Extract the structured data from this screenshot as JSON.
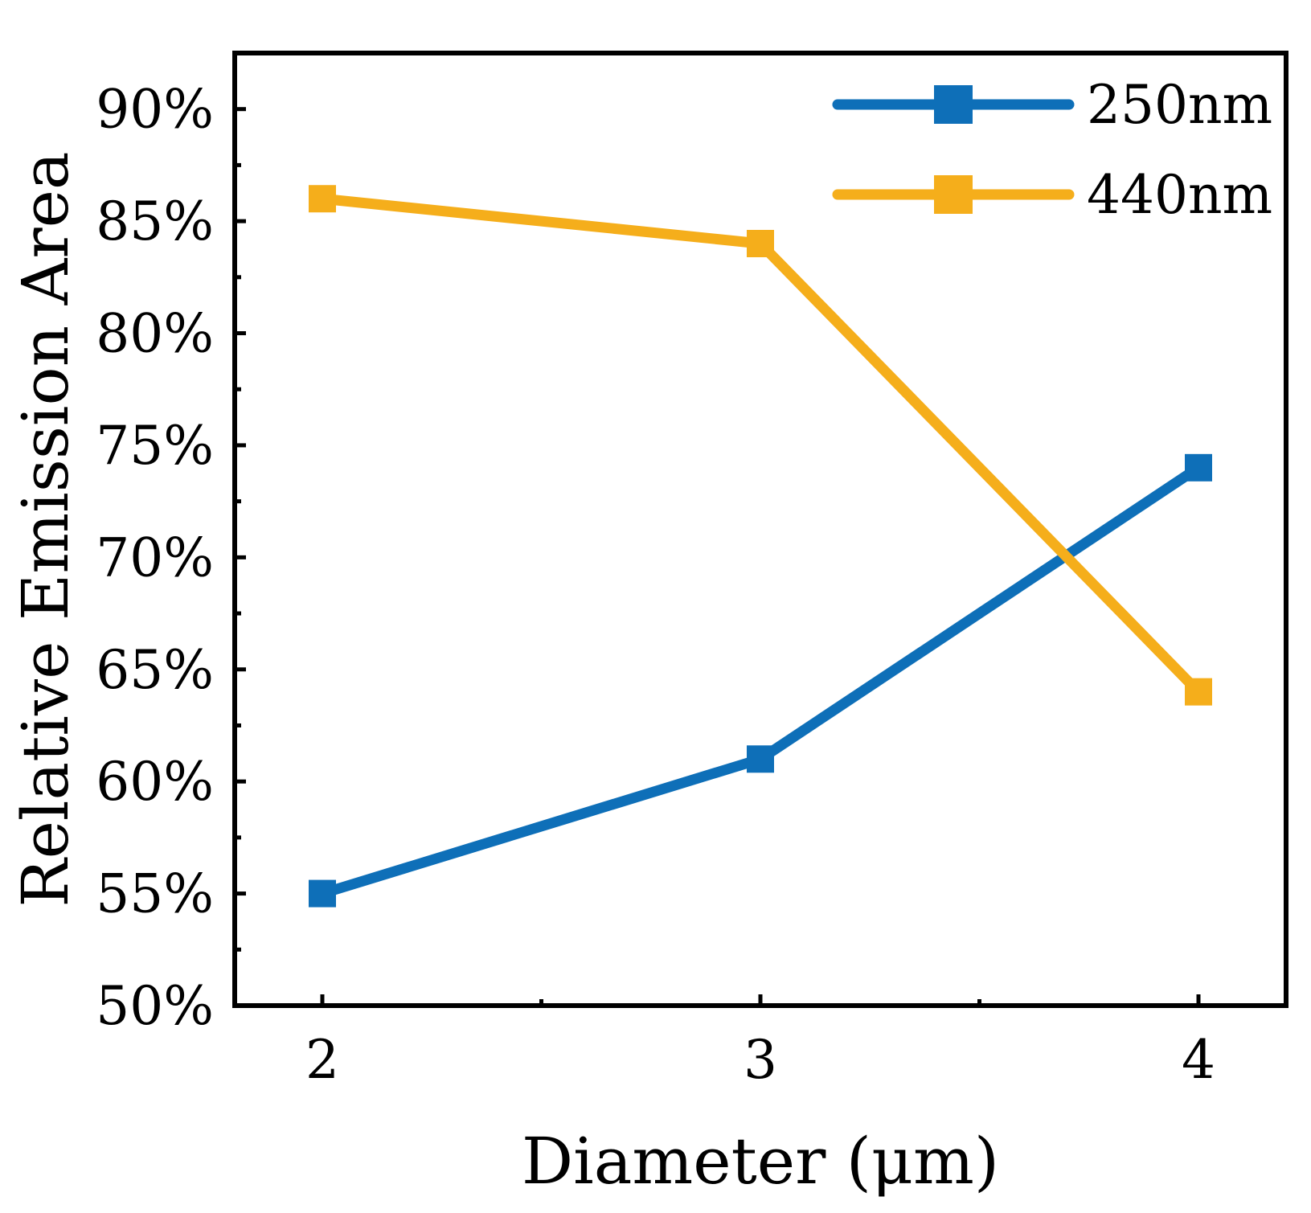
{
  "chart_data": {
    "type": "line",
    "title": "",
    "xlabel": "Diameter (μm)",
    "ylabel": "Relative Emission Area",
    "x": [
      2,
      3,
      4
    ],
    "xticks": [
      "2",
      "3",
      "4"
    ],
    "xlim": [
      1.8,
      4.2
    ],
    "yticks": [
      "50%",
      "55%",
      "60%",
      "65%",
      "70%",
      "75%",
      "80%",
      "85%",
      "90%"
    ],
    "ytick_values": [
      50,
      55,
      60,
      65,
      70,
      75,
      80,
      85,
      90
    ],
    "ylim": [
      50,
      92.5
    ],
    "grid": false,
    "legend_position": "top-right",
    "series": [
      {
        "name": "250nm",
        "values": [
          55,
          61,
          74
        ],
        "color": "#0E6FB8"
      },
      {
        "name": "440nm",
        "values": [
          86,
          84,
          64
        ],
        "color": "#F5AE1B"
      }
    ]
  }
}
